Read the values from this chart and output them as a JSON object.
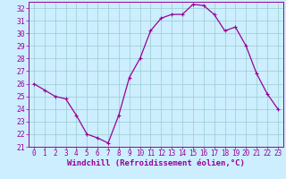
{
  "x": [
    0,
    1,
    2,
    3,
    4,
    5,
    6,
    7,
    8,
    9,
    10,
    11,
    12,
    13,
    14,
    15,
    16,
    17,
    18,
    19,
    20,
    21,
    22,
    23
  ],
  "y": [
    26.0,
    25.5,
    25.0,
    24.8,
    23.5,
    22.0,
    21.7,
    21.3,
    23.5,
    26.5,
    28.0,
    30.2,
    31.2,
    31.5,
    31.5,
    32.3,
    32.2,
    31.5,
    30.2,
    30.5,
    29.0,
    26.8,
    25.2,
    24.0
  ],
  "ylim": [
    21,
    32.5
  ],
  "yticks": [
    21,
    22,
    23,
    24,
    25,
    26,
    27,
    28,
    29,
    30,
    31,
    32
  ],
  "line_color": "#990099",
  "marker": "+",
  "marker_size": 3,
  "marker_lw": 0.8,
  "bg_color": "#cceeff",
  "grid_color": "#99cccc",
  "xlabel": "Windchill (Refroidissement éolien,°C)",
  "xlabel_fontsize": 6.5,
  "tick_fontsize": 5.5,
  "ytick_fontsize": 5.8,
  "fig_bg": "#cceeff",
  "linewidth": 0.9
}
